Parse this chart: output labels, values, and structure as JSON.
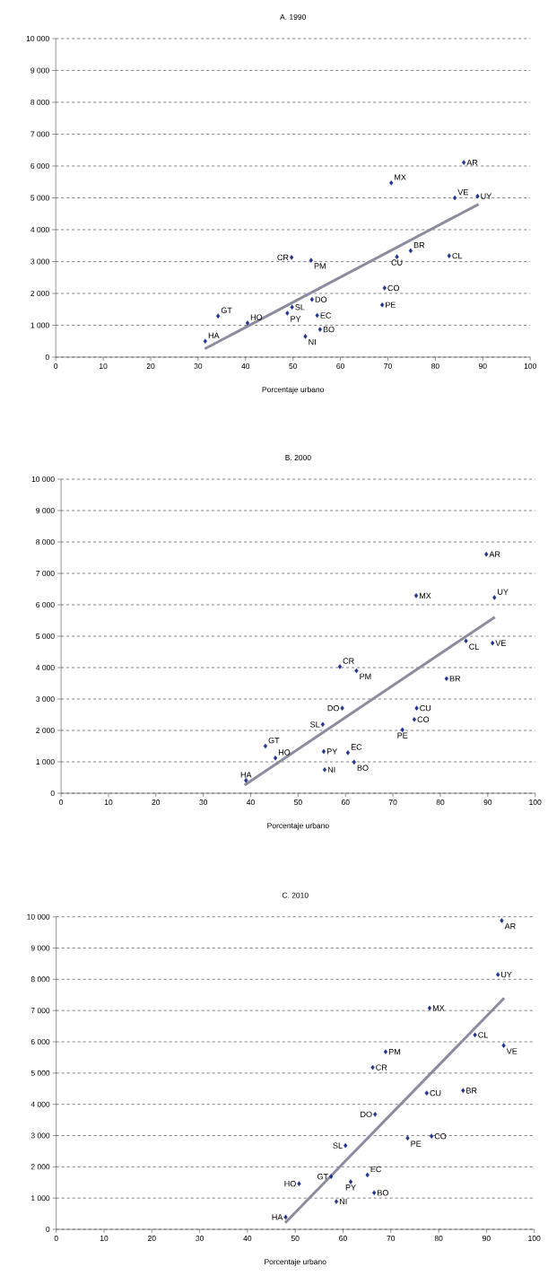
{
  "chart_data": [
    {
      "type": "scatter",
      "title": "A. 1990",
      "xlabel": "Porcentaje urbano",
      "xlim": [
        0,
        100
      ],
      "xticks": [
        0,
        10,
        20,
        30,
        40,
        50,
        60,
        70,
        80,
        90,
        100
      ],
      "ylim": [
        0,
        10000
      ],
      "yticks": [
        0,
        {
          "value": 1000,
          "label": "1 000"
        },
        {
          "value": 2000,
          "label": "2 000"
        },
        {
          "value": 3000,
          "label": "3 000"
        },
        {
          "value": 4000,
          "label": "4 000"
        },
        {
          "value": 5000,
          "label": "5 000"
        },
        {
          "value": 6000,
          "label": "6 000"
        },
        {
          "value": 7000,
          "label": "7 000"
        },
        {
          "value": 8000,
          "label": "8 000"
        },
        {
          "value": 9000,
          "label": "9 000"
        },
        {
          "value": 10000,
          "label": "10 000"
        }
      ],
      "grid": "y",
      "series": [
        {
          "type": "scatter",
          "marker": "diamond",
          "color": "#22338c",
          "x": [
            31.5,
            34.2,
            40.4,
            48.8,
            49.8,
            49.7,
            53.8,
            54.0,
            55.1,
            55.7,
            52.6,
            69.3,
            68.8,
            70.7,
            71.9,
            74.8,
            82.9,
            86.0,
            84.1,
            88.9
          ],
          "values": [
            500,
            1290,
            1070,
            1380,
            1570,
            3130,
            3040,
            1810,
            1310,
            870,
            650,
            2170,
            1640,
            5470,
            3150,
            3340,
            3180,
            6110,
            5000,
            5050
          ]
        },
        {
          "type": "line",
          "color": "#8c8ca0",
          "x": [
            31.4,
            89.1
          ],
          "values": [
            260,
            4800
          ]
        }
      ],
      "annotations": [
        {
          "text": "HA",
          "x": 31.5,
          "y": 500
        },
        {
          "text": "GT",
          "x": 34.2,
          "y": 1290
        },
        {
          "text": "HO",
          "x": 40.4,
          "y": 1070
        },
        {
          "text": "PY",
          "x": 48.8,
          "y": 1380
        },
        {
          "text": "SL",
          "x": 49.8,
          "y": 1570
        },
        {
          "text": "CR",
          "x": 49.7,
          "y": 3130
        },
        {
          "text": "PM",
          "x": 53.8,
          "y": 3040
        },
        {
          "text": "DO",
          "x": 54.0,
          "y": 1810
        },
        {
          "text": "EC",
          "x": 55.1,
          "y": 1310
        },
        {
          "text": "BO",
          "x": 55.7,
          "y": 870
        },
        {
          "text": "NI",
          "x": 52.6,
          "y": 650
        },
        {
          "text": "CO",
          "x": 69.3,
          "y": 2170
        },
        {
          "text": "PE",
          "x": 68.8,
          "y": 1640
        },
        {
          "text": "MX",
          "x": 70.7,
          "y": 5470
        },
        {
          "text": "CU",
          "x": 71.9,
          "y": 3150
        },
        {
          "text": "BR",
          "x": 74.8,
          "y": 3340
        },
        {
          "text": "CL",
          "x": 82.9,
          "y": 3180
        },
        {
          "text": "AR",
          "x": 86.0,
          "y": 6110
        },
        {
          "text": "VE",
          "x": 84.1,
          "y": 5000
        },
        {
          "text": "UY",
          "x": 88.9,
          "y": 5050
        }
      ]
    },
    {
      "type": "scatter",
      "title": "B. 2000",
      "xlabel": "Porcentaje urbano",
      "xlim": [
        0,
        100
      ],
      "xticks": [
        0,
        10,
        20,
        30,
        40,
        50,
        60,
        70,
        80,
        90,
        100
      ],
      "ylim": [
        0,
        10000
      ],
      "yticks": [
        0,
        {
          "value": 1000,
          "label": "1 000"
        },
        {
          "value": 2000,
          "label": "2 000"
        },
        {
          "value": 3000,
          "label": "3 000"
        },
        {
          "value": 4000,
          "label": "4 000"
        },
        {
          "value": 5000,
          "label": "5 000"
        },
        {
          "value": 6000,
          "label": "6 000"
        },
        {
          "value": 7000,
          "label": "7 000"
        },
        {
          "value": 8000,
          "label": "8 000"
        },
        {
          "value": 9000,
          "label": "9 000"
        },
        {
          "value": 10000,
          "label": "10 000"
        }
      ],
      "grid": "y",
      "series": [
        {
          "type": "scatter",
          "marker": "diamond",
          "color": "#22338c",
          "x": [
            39.0,
            43.1,
            45.2,
            55.4,
            55.2,
            58.8,
            62.3,
            59.3,
            60.5,
            61.8,
            55.6,
            74.5,
            72.0,
            74.9,
            75.0,
            81.3,
            85.4,
            89.7,
            91.0,
            91.4
          ],
          "values": [
            410,
            1500,
            1120,
            1330,
            2190,
            4030,
            3900,
            2710,
            1290,
            990,
            750,
            2350,
            2020,
            6290,
            2710,
            3650,
            4850,
            7610,
            4780,
            6230
          ]
        },
        {
          "type": "line",
          "color": "#8c8ca0",
          "x": [
            38.7,
            91.5
          ],
          "values": [
            260,
            5610
          ]
        }
      ],
      "annotations": [
        {
          "text": "HA",
          "x": 39.0,
          "y": 410
        },
        {
          "text": "GT",
          "x": 43.1,
          "y": 1500
        },
        {
          "text": "HO",
          "x": 45.2,
          "y": 1120
        },
        {
          "text": "PY",
          "x": 55.4,
          "y": 1330
        },
        {
          "text": "SL",
          "x": 55.2,
          "y": 2190
        },
        {
          "text": "CR",
          "x": 58.8,
          "y": 4030
        },
        {
          "text": "PM",
          "x": 62.3,
          "y": 3900
        },
        {
          "text": "DO",
          "x": 59.3,
          "y": 2710
        },
        {
          "text": "EC",
          "x": 60.5,
          "y": 1290
        },
        {
          "text": "BO",
          "x": 61.8,
          "y": 990
        },
        {
          "text": "NI",
          "x": 55.6,
          "y": 750
        },
        {
          "text": "CO",
          "x": 74.5,
          "y": 2350
        },
        {
          "text": "PE",
          "x": 72.0,
          "y": 2020
        },
        {
          "text": "MX",
          "x": 74.9,
          "y": 6290
        },
        {
          "text": "CU",
          "x": 75.0,
          "y": 2710
        },
        {
          "text": "BR",
          "x": 81.3,
          "y": 3650
        },
        {
          "text": "CL",
          "x": 85.4,
          "y": 4850
        },
        {
          "text": "AR",
          "x": 89.7,
          "y": 7610
        },
        {
          "text": "VE",
          "x": 91.0,
          "y": 4780
        },
        {
          "text": "UY",
          "x": 91.4,
          "y": 6230
        }
      ]
    },
    {
      "type": "scatter",
      "title": "C. 2010",
      "xlabel": "Porcentaje urbano",
      "xlim": [
        0,
        100
      ],
      "xticks": [
        0,
        10,
        20,
        30,
        40,
        50,
        60,
        70,
        80,
        90,
        100
      ],
      "ylim": [
        0,
        10000
      ],
      "yticks": [
        0,
        {
          "value": 1000,
          "label": "1 000"
        },
        {
          "value": 2000,
          "label": "2 000"
        },
        {
          "value": 3000,
          "label": "3 000"
        },
        {
          "value": 4000,
          "label": "4 000"
        },
        {
          "value": 5000,
          "label": "5 000"
        },
        {
          "value": 6000,
          "label": "6 000"
        },
        {
          "value": 7000,
          "label": "7 000"
        },
        {
          "value": 8000,
          "label": "8 000"
        },
        {
          "value": 9000,
          "label": "9 000"
        },
        {
          "value": 10000,
          "label": "10 000"
        }
      ],
      "grid": "y",
      "series": [
        {
          "type": "scatter",
          "marker": "diamond",
          "color": "#22338c",
          "x": [
            48.0,
            57.5,
            50.8,
            61.6,
            60.5,
            66.2,
            68.9,
            66.7,
            65.1,
            66.5,
            58.6,
            78.5,
            73.5,
            78.1,
            77.5,
            85.1,
            87.6,
            93.2,
            93.6,
            92.4
          ],
          "values": [
            390,
            1690,
            1460,
            1520,
            2680,
            5180,
            5680,
            3680,
            1740,
            1170,
            890,
            2980,
            2920,
            7080,
            4360,
            4440,
            6220,
            9880,
            5880,
            8150
          ]
        },
        {
          "type": "line",
          "color": "#8c8ca0",
          "x": [
            47.9,
            93.7
          ],
          "values": [
            210,
            7400
          ]
        }
      ],
      "annotations": [
        {
          "text": "HA",
          "x": 48.0,
          "y": 390
        },
        {
          "text": "GT",
          "x": 57.5,
          "y": 1690
        },
        {
          "text": "HO",
          "x": 50.8,
          "y": 1460
        },
        {
          "text": "PY",
          "x": 61.6,
          "y": 1520
        },
        {
          "text": "SL",
          "x": 60.5,
          "y": 2680
        },
        {
          "text": "CR",
          "x": 66.2,
          "y": 5180
        },
        {
          "text": "PM",
          "x": 68.9,
          "y": 5680
        },
        {
          "text": "DO",
          "x": 66.7,
          "y": 3680
        },
        {
          "text": "EC",
          "x": 65.1,
          "y": 1740
        },
        {
          "text": "BO",
          "x": 66.5,
          "y": 1170
        },
        {
          "text": "NI",
          "x": 58.6,
          "y": 890
        },
        {
          "text": "CO",
          "x": 78.5,
          "y": 2980
        },
        {
          "text": "PE",
          "x": 73.5,
          "y": 2920
        },
        {
          "text": "MX",
          "x": 78.1,
          "y": 7080
        },
        {
          "text": "CU",
          "x": 77.5,
          "y": 4360
        },
        {
          "text": "BR",
          "x": 85.1,
          "y": 4440
        },
        {
          "text": "CL",
          "x": 87.6,
          "y": 6220
        },
        {
          "text": "AR",
          "x": 93.2,
          "y": 9880
        },
        {
          "text": "VE",
          "x": 93.6,
          "y": 5880
        },
        {
          "text": "UY",
          "x": 92.4,
          "y": 8150
        }
      ]
    }
  ]
}
